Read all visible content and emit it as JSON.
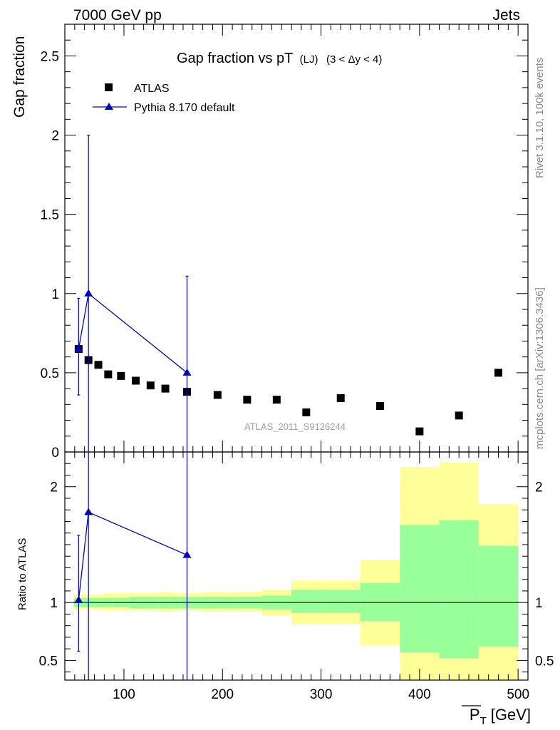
{
  "chart_data": [
    {
      "type": "scatter",
      "header_left": "7000 GeV pp",
      "header_right": "Jets",
      "title_main": "Gap fraction vs pT",
      "title_sub1": "(LJ)",
      "title_sub2": "(3 < Δy < 4)",
      "ylabel": "Gap fraction",
      "xlim": [
        40,
        510
      ],
      "ylim": [
        0,
        2.7
      ],
      "y_ticks": [
        {
          "v": 0,
          "label": "0"
        },
        {
          "v": 0.5,
          "label": "0.5"
        },
        {
          "v": 1,
          "label": "1"
        },
        {
          "v": 1.5,
          "label": "1.5"
        },
        {
          "v": 2,
          "label": "2"
        },
        {
          "v": 2.5,
          "label": "2.5"
        }
      ],
      "watermark": "ATLAS_2011_S9126244",
      "legend": [
        {
          "label": "ATLAS",
          "marker": "square",
          "color": "#000000"
        },
        {
          "label": "Pythia 8.170 default",
          "marker": "triangle",
          "color": "#0000cc"
        }
      ],
      "series": [
        {
          "name": "ATLAS",
          "color": "#000000",
          "x": [
            54,
            64,
            74,
            84,
            97,
            112,
            127,
            142,
            164,
            195,
            225,
            255,
            285,
            320,
            360,
            400,
            440,
            480
          ],
          "y": [
            0.65,
            0.58,
            0.55,
            0.49,
            0.48,
            0.45,
            0.42,
            0.4,
            0.38,
            0.36,
            0.33,
            0.33,
            0.25,
            0.34,
            0.29,
            0.13,
            0.23,
            0.5
          ]
        },
        {
          "name": "Pythia 8.170 default",
          "color": "#0000cc",
          "x": [
            54,
            64,
            164
          ],
          "y": [
            0.65,
            1.0,
            0.5
          ],
          "err_low": [
            0.36,
            0.0,
            0.0
          ],
          "err_high": [
            0.97,
            2.0,
            1.11
          ]
        }
      ]
    },
    {
      "type": "line",
      "ylabel": "Ratio to ATLAS",
      "xlabel_main": "P",
      "xlabel_sub": "T",
      "xlabel_unit": "[GeV]",
      "xlim": [
        40,
        510
      ],
      "ylim": [
        0.33,
        2.3
      ],
      "x_ticks": [
        {
          "v": 100,
          "label": "100"
        },
        {
          "v": 200,
          "label": "200"
        },
        {
          "v": 300,
          "label": "300"
        },
        {
          "v": 400,
          "label": "400"
        },
        {
          "v": 500,
          "label": "500"
        }
      ],
      "y_ticks": [
        {
          "v": 0.5,
          "label": "0.5"
        },
        {
          "v": 1,
          "label": "1"
        },
        {
          "v": 2,
          "label": "2"
        }
      ],
      "bands": [
        {
          "x0": 49,
          "x1": 59,
          "y_lo": 0.94,
          "y_hi": 1.07,
          "g_lo": 0.96,
          "g_hi": 1.04
        },
        {
          "x0": 59,
          "x1": 69,
          "y_lo": 0.94,
          "y_hi": 1.07,
          "g_lo": 0.96,
          "g_hi": 1.04
        },
        {
          "x0": 69,
          "x1": 79,
          "y_lo": 0.94,
          "y_hi": 1.07,
          "g_lo": 0.96,
          "g_hi": 1.04
        },
        {
          "x0": 79,
          "x1": 89,
          "y_lo": 0.93,
          "y_hi": 1.08,
          "g_lo": 0.96,
          "g_hi": 1.04
        },
        {
          "x0": 89,
          "x1": 105,
          "y_lo": 0.93,
          "y_hi": 1.08,
          "g_lo": 0.96,
          "g_hi": 1.04
        },
        {
          "x0": 105,
          "x1": 120,
          "y_lo": 0.93,
          "y_hi": 1.08,
          "g_lo": 0.95,
          "g_hi": 1.05
        },
        {
          "x0": 120,
          "x1": 135,
          "y_lo": 0.93,
          "y_hi": 1.08,
          "g_lo": 0.95,
          "g_hi": 1.05
        },
        {
          "x0": 135,
          "x1": 150,
          "y_lo": 0.92,
          "y_hi": 1.09,
          "g_lo": 0.95,
          "g_hi": 1.05
        },
        {
          "x0": 150,
          "x1": 180,
          "y_lo": 0.93,
          "y_hi": 1.08,
          "g_lo": 0.95,
          "g_hi": 1.05
        },
        {
          "x0": 180,
          "x1": 210,
          "y_lo": 0.92,
          "y_hi": 1.09,
          "g_lo": 0.95,
          "g_hi": 1.05
        },
        {
          "x0": 210,
          "x1": 240,
          "y_lo": 0.92,
          "y_hi": 1.09,
          "g_lo": 0.95,
          "g_hi": 1.05
        },
        {
          "x0": 240,
          "x1": 270,
          "y_lo": 0.89,
          "y_hi": 1.11,
          "g_lo": 0.94,
          "g_hi": 1.06
        },
        {
          "x0": 270,
          "x1": 300,
          "y_lo": 0.81,
          "y_hi": 1.19,
          "g_lo": 0.91,
          "g_hi": 1.11
        },
        {
          "x0": 300,
          "x1": 340,
          "y_lo": 0.81,
          "y_hi": 1.19,
          "g_lo": 0.91,
          "g_hi": 1.11
        },
        {
          "x0": 340,
          "x1": 380,
          "y_lo": 0.63,
          "y_hi": 1.37,
          "g_lo": 0.84,
          "g_hi": 1.17
        },
        {
          "x0": 380,
          "x1": 420,
          "y_lo": 0.33,
          "y_hi": 2.17,
          "g_lo": 0.57,
          "g_hi": 1.67
        },
        {
          "x0": 420,
          "x1": 460,
          "y_lo": 0.33,
          "y_hi": 2.21,
          "g_lo": 0.52,
          "g_hi": 1.71
        },
        {
          "x0": 460,
          "x1": 500,
          "y_lo": 0.33,
          "y_hi": 1.85,
          "g_lo": 0.62,
          "g_hi": 1.49
        }
      ],
      "series": [
        {
          "name": "Pythia 8.170 default",
          "color": "#0000cc",
          "x": [
            54,
            64,
            164
          ],
          "y": [
            1.02,
            1.78,
            1.41
          ],
          "err_low": [
            0.58,
            0.33,
            0.33
          ],
          "err_high": [
            1.58,
            2.3,
            2.3
          ]
        }
      ]
    }
  ],
  "side_text_top": "Rivet 3.1.10,  100k events",
  "side_text_bottom": "mcplots.cern.ch [arXiv:1306.3436]"
}
